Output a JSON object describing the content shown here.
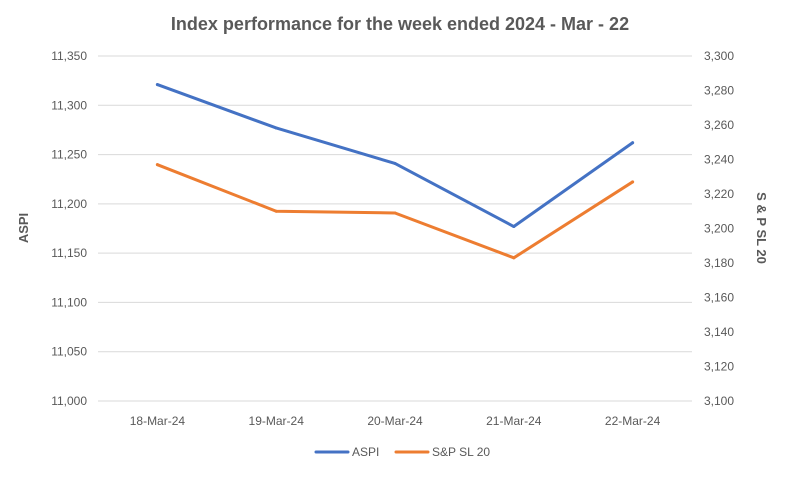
{
  "chart_data": {
    "type": "line",
    "title": "Index performance for the week ended 2024 - Mar - 22",
    "categories": [
      "18-Mar-24",
      "19-Mar-24",
      "20-Mar-24",
      "21-Mar-24",
      "22-Mar-24"
    ],
    "ylabel": "ASPI",
    "y2label": "S & P SL 20",
    "ylim": [
      11000,
      11350
    ],
    "y_ticks": [
      "11,000",
      "11,050",
      "11,100",
      "11,150",
      "11,200",
      "11,250",
      "11,300",
      "11,350"
    ],
    "y2lim": [
      3100,
      3300
    ],
    "y2_ticks": [
      "3,100",
      "3,120",
      "3,140",
      "3,160",
      "3,180",
      "3,200",
      "3,220",
      "3,240",
      "3,260",
      "3,280",
      "3,300"
    ],
    "grid": true,
    "legend_position": "bottom",
    "series": [
      {
        "name": "ASPI",
        "axis": "left",
        "color": "#4472c4",
        "values": [
          11321,
          11277,
          11241,
          11177,
          11262
        ]
      },
      {
        "name": "S&P SL 20",
        "axis": "right",
        "color": "#ed7d31",
        "values": [
          3237,
          3210,
          3209,
          3183,
          3227
        ]
      }
    ]
  }
}
